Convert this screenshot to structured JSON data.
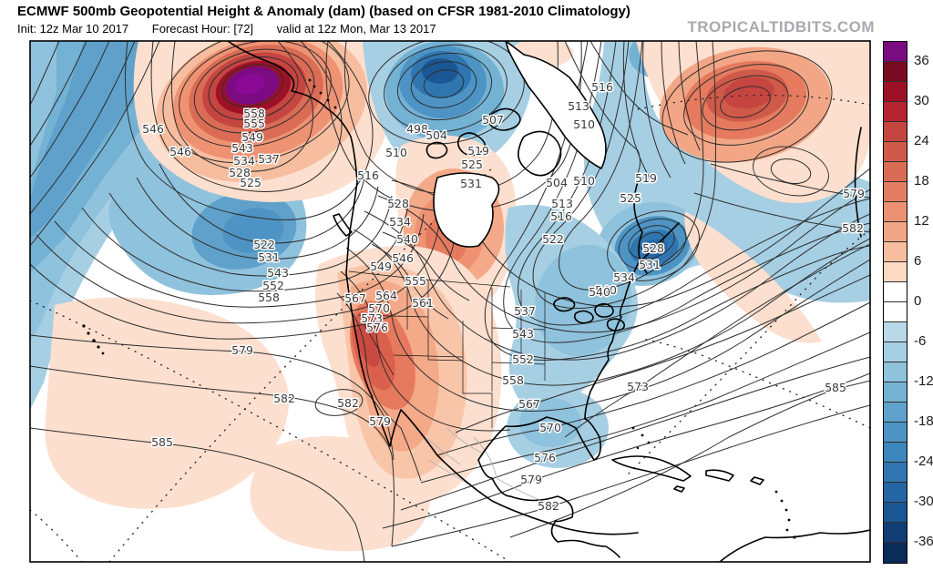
{
  "header": {
    "title": "ECMWF 500mb Geopotential Height & Anomaly (dam) (based on CFSR 1981-2010 Climatology)",
    "init_line": "Init: 12z Mar 10 2017",
    "forecast_hour": "Forecast Hour: [72]",
    "valid_line": "valid at 12z Mon, Mar 13 2017",
    "watermark": "TROPICALTIDBITS.COM"
  },
  "colorbar": {
    "unit": "dam",
    "tick_labels": [
      "36",
      "30",
      "24",
      "18",
      "12",
      "6",
      "0",
      "-6",
      "-12",
      "-18",
      "-24",
      "-30",
      "-36"
    ],
    "segment_colors": [
      "#7b0b80",
      "#7a0a21",
      "#9d1127",
      "#b72431",
      "#c54540",
      "#d05a4a",
      "#da6c55",
      "#e37e62",
      "#ec9273",
      "#f2a686",
      "#f7bd9f",
      "#fbd9c3",
      "#ffffff",
      "#ffffff",
      "#b8d9e8",
      "#a6cfe3",
      "#8fc2dc",
      "#74b2d4",
      "#5fa1ca",
      "#4d94c4",
      "#3c86bc",
      "#2f76b1",
      "#2465a4",
      "#1b5695",
      "#103e74",
      "#0b2b58"
    ]
  },
  "map": {
    "contour_unit": "dam",
    "contour_interval": 3,
    "contour_labels": [
      [
        546,
        168,
        142
      ],
      [
        546,
        198,
        167
      ],
      [
        558,
        279,
        125
      ],
      [
        555,
        279,
        136
      ],
      [
        549,
        277,
        151
      ],
      [
        543,
        266,
        163
      ],
      [
        537,
        295,
        175
      ],
      [
        534,
        268,
        177
      ],
      [
        528,
        263,
        190
      ],
      [
        525,
        275,
        201
      ],
      [
        516,
        404,
        193
      ],
      [
        522,
        290,
        269
      ],
      [
        531,
        295,
        283
      ],
      [
        543,
        305,
        300
      ],
      [
        552,
        300,
        314
      ],
      [
        558,
        295,
        327
      ],
      [
        579,
        266,
        385
      ],
      [
        582,
        312,
        438
      ],
      [
        582,
        382,
        443
      ],
      [
        585,
        178,
        486
      ],
      [
        579,
        417,
        463
      ],
      [
        498,
        458,
        142
      ],
      [
        504,
        479,
        149
      ],
      [
        507,
        541,
        132
      ],
      [
        510,
        435,
        168
      ],
      [
        519,
        525,
        166
      ],
      [
        525,
        518,
        181
      ],
      [
        531,
        517,
        202
      ],
      [
        528,
        437,
        224
      ],
      [
        534,
        439,
        244
      ],
      [
        540,
        447,
        263
      ],
      [
        546,
        442,
        284
      ],
      [
        549,
        418,
        293
      ],
      [
        513,
        635,
        117
      ],
      [
        516,
        661,
        96
      ],
      [
        510,
        641,
        137
      ],
      [
        504,
        611,
        201
      ],
      [
        510,
        641,
        199
      ],
      [
        513,
        617,
        224
      ],
      [
        516,
        616,
        238
      ],
      [
        522,
        607,
        263
      ],
      [
        519,
        709,
        196
      ],
      [
        525,
        692,
        218
      ],
      [
        528,
        717,
        273
      ],
      [
        531,
        713,
        291
      ],
      [
        534,
        685,
        305
      ],
      [
        540,
        665,
        319
      ],
      [
        540,
        658,
        321
      ],
      [
        537,
        576,
        342
      ],
      [
        543,
        574,
        367
      ],
      [
        552,
        574,
        395
      ],
      [
        558,
        563,
        418
      ],
      [
        567,
        581,
        444
      ],
      [
        570,
        604,
        470
      ],
      [
        576,
        598,
        503
      ],
      [
        579,
        583,
        527
      ],
      [
        582,
        602,
        556
      ],
      [
        573,
        700,
        425
      ],
      [
        567,
        390,
        328
      ],
      [
        570,
        416,
        339
      ],
      [
        573,
        408,
        350
      ],
      [
        576,
        414,
        360
      ],
      [
        564,
        424,
        325
      ],
      [
        561,
        464,
        333
      ],
      [
        555,
        456,
        309
      ],
      [
        579,
        937,
        213
      ],
      [
        582,
        936,
        251
      ],
      [
        585,
        917,
        426
      ]
    ]
  }
}
